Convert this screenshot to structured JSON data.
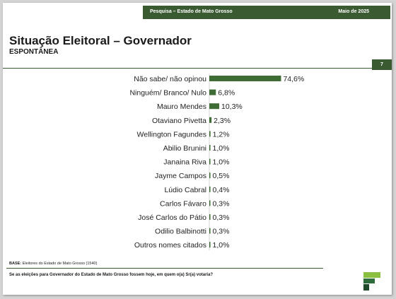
{
  "header": {
    "survey": "Pesquisa – Estado de Mato Grosso",
    "date": "Maio de 2025"
  },
  "title": "Situação Eleitoral – Governador",
  "subtitle": "ESPONTÂNEA",
  "page_number": "7",
  "footer": {
    "base_label": "BASE:",
    "base_text": "Eleitores do Estado de Mato Grosso (1540)",
    "question": "Se as eleições para Governador do Estado de Mato Grosso fossem hoje, em quem o(a) Sr(a) votaria?"
  },
  "colors": {
    "accent": "#3a5a32",
    "bar": "#3f6b34"
  },
  "chart_data": {
    "type": "bar",
    "orientation": "horizontal",
    "categories": [
      "Não sabe/ não opinou",
      "Ninguém/ Branco/ Nulo",
      "Mauro Mendes",
      "Otaviano Pivetta",
      "Wellington Fagundes",
      "Abilio Brunini",
      "Janaina Riva",
      "Jayme Campos",
      "Lúdio Cabral",
      "Carlos Fávaro",
      "José Carlos do Pátio",
      "Odilio Balbinotti",
      "Outros nomes citados"
    ],
    "values": [
      74.6,
      6.8,
      10.3,
      2.3,
      1.2,
      1.0,
      1.0,
      0.5,
      0.4,
      0.3,
      0.3,
      0.3,
      1.0
    ],
    "value_labels": [
      "74,6%",
      "6,8%",
      "10,3%",
      "2,3%",
      "1,2%",
      "1,0%",
      "1,0%",
      "0,5%",
      "0,4%",
      "0,3%",
      "0,3%",
      "0,3%",
      "1,0%"
    ],
    "xlim": [
      0,
      100
    ],
    "grid": false,
    "legend": "none"
  }
}
